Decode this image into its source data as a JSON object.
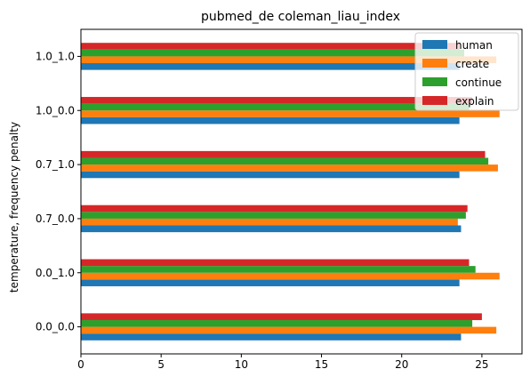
{
  "chart_data": {
    "type": "bar",
    "orientation": "horizontal",
    "title": "pubmed_de coleman_liau_index",
    "xlabel": "",
    "ylabel": "temperature, frequency penalty",
    "categories": [
      "0.0_0.0",
      "0.0_1.0",
      "0.7_0.0",
      "0.7_1.0",
      "1.0_0.0",
      "1.0_1.0"
    ],
    "xlim": [
      0,
      27.5
    ],
    "xticks": [
      0,
      5,
      10,
      15,
      20,
      25
    ],
    "grid": false,
    "legend_position": "top-right",
    "series": [
      {
        "name": "human",
        "color": "#1f77b4",
        "values": [
          23.7,
          23.6,
          23.7,
          23.6,
          23.6,
          23.6
        ]
      },
      {
        "name": "create",
        "color": "#ff7f0e",
        "values": [
          25.9,
          26.1,
          23.5,
          26.0,
          26.1,
          25.9
        ]
      },
      {
        "name": "continue",
        "color": "#2ca02c",
        "values": [
          24.4,
          24.6,
          24.0,
          25.4,
          24.2,
          23.9
        ]
      },
      {
        "name": "explain",
        "color": "#d62728",
        "values": [
          25.0,
          24.2,
          24.1,
          25.2,
          24.4,
          23.6
        ]
      }
    ]
  }
}
